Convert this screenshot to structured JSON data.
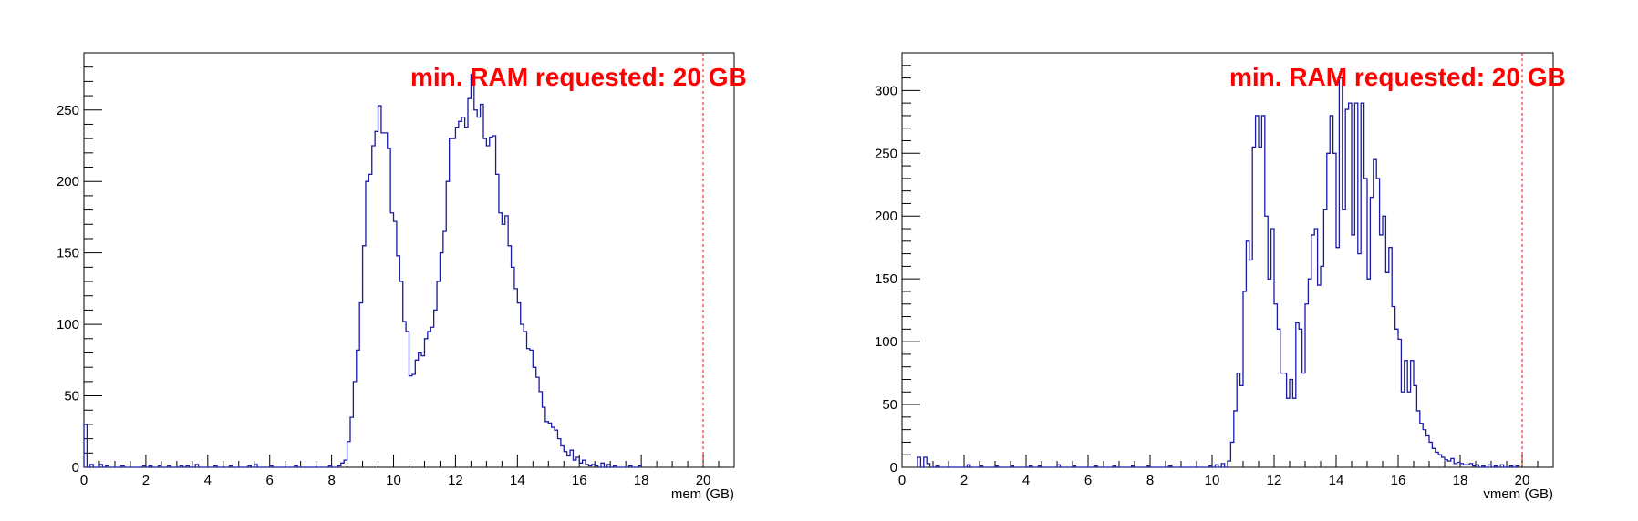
{
  "chart_data": [
    {
      "type": "histogram",
      "xlabel": "mem (GB)",
      "ylabel": "",
      "xlim": [
        0,
        21
      ],
      "ylim": [
        0,
        290
      ],
      "x_ticks": [
        0,
        2,
        4,
        6,
        8,
        10,
        12,
        14,
        16,
        18,
        20
      ],
      "x_tick_labels": [
        "0",
        "2",
        "4",
        "6",
        "8",
        "10",
        "12",
        "14",
        "16",
        "18",
        "20"
      ],
      "y_ticks": [
        0,
        50,
        100,
        150,
        200,
        250
      ],
      "y_tick_labels": [
        "0",
        "50",
        "100",
        "150",
        "200",
        "250"
      ],
      "bin_width": 0.1,
      "line_color": "#1a1aa6",
      "threshold": {
        "x": 20,
        "color": "#ff0000",
        "label": "min. RAM requested: 20 GB"
      },
      "points": [
        [
          0.0,
          30
        ],
        [
          0.2,
          2
        ],
        [
          0.5,
          2
        ],
        [
          0.7,
          1
        ],
        [
          1.2,
          1
        ],
        [
          1.9,
          1
        ],
        [
          2.1,
          1
        ],
        [
          2.4,
          1
        ],
        [
          2.7,
          1
        ],
        [
          3.1,
          1
        ],
        [
          3.3,
          1
        ],
        [
          3.6,
          2
        ],
        [
          4.2,
          1
        ],
        [
          4.7,
          1
        ],
        [
          5.3,
          1
        ],
        [
          5.5,
          2
        ],
        [
          6.0,
          1
        ],
        [
          6.8,
          1
        ],
        [
          7.9,
          1
        ],
        [
          8.2,
          1
        ],
        [
          8.3,
          3
        ],
        [
          8.4,
          5
        ],
        [
          8.5,
          18
        ],
        [
          8.6,
          35
        ],
        [
          8.7,
          60
        ],
        [
          8.8,
          82
        ],
        [
          8.9,
          115
        ],
        [
          9.0,
          155
        ],
        [
          9.1,
          200
        ],
        [
          9.2,
          205
        ],
        [
          9.3,
          225
        ],
        [
          9.4,
          235
        ],
        [
          9.5,
          253
        ],
        [
          9.6,
          234
        ],
        [
          9.7,
          234
        ],
        [
          9.8,
          223
        ],
        [
          9.9,
          178
        ],
        [
          10.0,
          172
        ],
        [
          10.1,
          148
        ],
        [
          10.2,
          130
        ],
        [
          10.3,
          102
        ],
        [
          10.4,
          95
        ],
        [
          10.5,
          64
        ],
        [
          10.6,
          65
        ],
        [
          10.7,
          75
        ],
        [
          10.8,
          80
        ],
        [
          10.9,
          78
        ],
        [
          11.0,
          90
        ],
        [
          11.1,
          95
        ],
        [
          11.2,
          98
        ],
        [
          11.3,
          110
        ],
        [
          11.4,
          130
        ],
        [
          11.5,
          150
        ],
        [
          11.6,
          165
        ],
        [
          11.7,
          200
        ],
        [
          11.8,
          230
        ],
        [
          11.9,
          230
        ],
        [
          12.0,
          238
        ],
        [
          12.1,
          242
        ],
        [
          12.2,
          245
        ],
        [
          12.3,
          238
        ],
        [
          12.4,
          258
        ],
        [
          12.5,
          275
        ],
        [
          12.6,
          250
        ],
        [
          12.7,
          245
        ],
        [
          12.8,
          254
        ],
        [
          12.9,
          230
        ],
        [
          13.0,
          225
        ],
        [
          13.1,
          231
        ],
        [
          13.2,
          232
        ],
        [
          13.3,
          205
        ],
        [
          13.4,
          178
        ],
        [
          13.5,
          170
        ],
        [
          13.6,
          176
        ],
        [
          13.7,
          155
        ],
        [
          13.8,
          140
        ],
        [
          13.9,
          125
        ],
        [
          14.0,
          115
        ],
        [
          14.1,
          100
        ],
        [
          14.2,
          95
        ],
        [
          14.3,
          83
        ],
        [
          14.4,
          82
        ],
        [
          14.5,
          70
        ],
        [
          14.6,
          63
        ],
        [
          14.7,
          53
        ],
        [
          14.8,
          42
        ],
        [
          14.9,
          32
        ],
        [
          15.0,
          31
        ],
        [
          15.1,
          28
        ],
        [
          15.2,
          26
        ],
        [
          15.3,
          20
        ],
        [
          15.4,
          15
        ],
        [
          15.5,
          11
        ],
        [
          15.6,
          8
        ],
        [
          15.7,
          12
        ],
        [
          15.8,
          5
        ],
        [
          15.9,
          7
        ],
        [
          16.0,
          3
        ],
        [
          16.1,
          5
        ],
        [
          16.2,
          2
        ],
        [
          16.3,
          1
        ],
        [
          16.4,
          2
        ],
        [
          16.5,
          1
        ],
        [
          16.7,
          3
        ],
        [
          16.9,
          2
        ],
        [
          17.1,
          1
        ],
        [
          17.6,
          1
        ],
        [
          17.9,
          1
        ]
      ]
    },
    {
      "type": "histogram",
      "xlabel": "vmem (GB)",
      "ylabel": "",
      "xlim": [
        0,
        21
      ],
      "ylim": [
        0,
        330
      ],
      "x_ticks": [
        0,
        2,
        4,
        6,
        8,
        10,
        12,
        14,
        16,
        18,
        20
      ],
      "x_tick_labels": [
        "0",
        "2",
        "4",
        "6",
        "8",
        "10",
        "12",
        "14",
        "16",
        "18",
        "20"
      ],
      "y_ticks": [
        0,
        50,
        100,
        150,
        200,
        250,
        300
      ],
      "y_tick_labels": [
        "0",
        "50",
        "100",
        "150",
        "200",
        "250",
        "300"
      ],
      "bin_width": 0.1,
      "line_color": "#1a1aa6",
      "threshold": {
        "x": 20,
        "color": "#ff0000",
        "label": "min. RAM requested: 20 GB"
      },
      "points": [
        [
          0.5,
          8
        ],
        [
          0.7,
          8
        ],
        [
          0.8,
          3
        ],
        [
          1.1,
          1
        ],
        [
          2.1,
          2
        ],
        [
          2.5,
          1
        ],
        [
          3.0,
          1
        ],
        [
          3.5,
          1
        ],
        [
          4.1,
          1
        ],
        [
          4.4,
          1
        ],
        [
          5.0,
          2
        ],
        [
          5.5,
          1
        ],
        [
          6.2,
          1
        ],
        [
          6.8,
          1
        ],
        [
          7.4,
          1
        ],
        [
          7.9,
          1
        ],
        [
          8.6,
          1
        ],
        [
          9.9,
          1
        ],
        [
          10.1,
          2
        ],
        [
          10.3,
          3
        ],
        [
          10.5,
          5
        ],
        [
          10.6,
          20
        ],
        [
          10.7,
          45
        ],
        [
          10.8,
          75
        ],
        [
          10.9,
          65
        ],
        [
          11.0,
          140
        ],
        [
          11.1,
          180
        ],
        [
          11.2,
          165
        ],
        [
          11.3,
          255
        ],
        [
          11.4,
          280
        ],
        [
          11.5,
          255
        ],
        [
          11.6,
          280
        ],
        [
          11.7,
          200
        ],
        [
          11.8,
          150
        ],
        [
          11.9,
          190
        ],
        [
          12.0,
          130
        ],
        [
          12.1,
          110
        ],
        [
          12.2,
          75
        ],
        [
          12.3,
          75
        ],
        [
          12.4,
          55
        ],
        [
          12.5,
          70
        ],
        [
          12.6,
          55
        ],
        [
          12.7,
          115
        ],
        [
          12.8,
          110
        ],
        [
          12.9,
          75
        ],
        [
          13.0,
          130
        ],
        [
          13.1,
          150
        ],
        [
          13.2,
          185
        ],
        [
          13.3,
          190
        ],
        [
          13.4,
          145
        ],
        [
          13.5,
          160
        ],
        [
          13.6,
          205
        ],
        [
          13.7,
          250
        ],
        [
          13.8,
          280
        ],
        [
          13.9,
          250
        ],
        [
          14.0,
          175
        ],
        [
          14.1,
          310
        ],
        [
          14.2,
          205
        ],
        [
          14.3,
          285
        ],
        [
          14.4,
          290
        ],
        [
          14.5,
          185
        ],
        [
          14.6,
          290
        ],
        [
          14.7,
          170
        ],
        [
          14.8,
          290
        ],
        [
          14.9,
          230
        ],
        [
          15.0,
          150
        ],
        [
          15.1,
          215
        ],
        [
          15.2,
          245
        ],
        [
          15.3,
          230
        ],
        [
          15.4,
          185
        ],
        [
          15.5,
          200
        ],
        [
          15.6,
          155
        ],
        [
          15.7,
          175
        ],
        [
          15.8,
          128
        ],
        [
          15.9,
          110
        ],
        [
          16.0,
          102
        ],
        [
          16.1,
          60
        ],
        [
          16.2,
          85
        ],
        [
          16.3,
          60
        ],
        [
          16.4,
          85
        ],
        [
          16.5,
          65
        ],
        [
          16.6,
          45
        ],
        [
          16.7,
          35
        ],
        [
          16.8,
          30
        ],
        [
          16.9,
          25
        ],
        [
          17.0,
          20
        ],
        [
          17.1,
          15
        ],
        [
          17.2,
          12
        ],
        [
          17.3,
          10
        ],
        [
          17.4,
          8
        ],
        [
          17.5,
          6
        ],
        [
          17.6,
          5
        ],
        [
          17.7,
          7
        ],
        [
          17.8,
          3
        ],
        [
          17.9,
          4
        ],
        [
          18.0,
          3
        ],
        [
          18.1,
          2
        ],
        [
          18.2,
          2
        ],
        [
          18.3,
          3
        ],
        [
          18.4,
          1
        ],
        [
          18.5,
          2
        ],
        [
          18.7,
          1
        ],
        [
          18.9,
          2
        ],
        [
          19.1,
          1
        ],
        [
          19.3,
          2
        ],
        [
          19.6,
          1
        ],
        [
          19.8,
          1
        ]
      ]
    }
  ]
}
